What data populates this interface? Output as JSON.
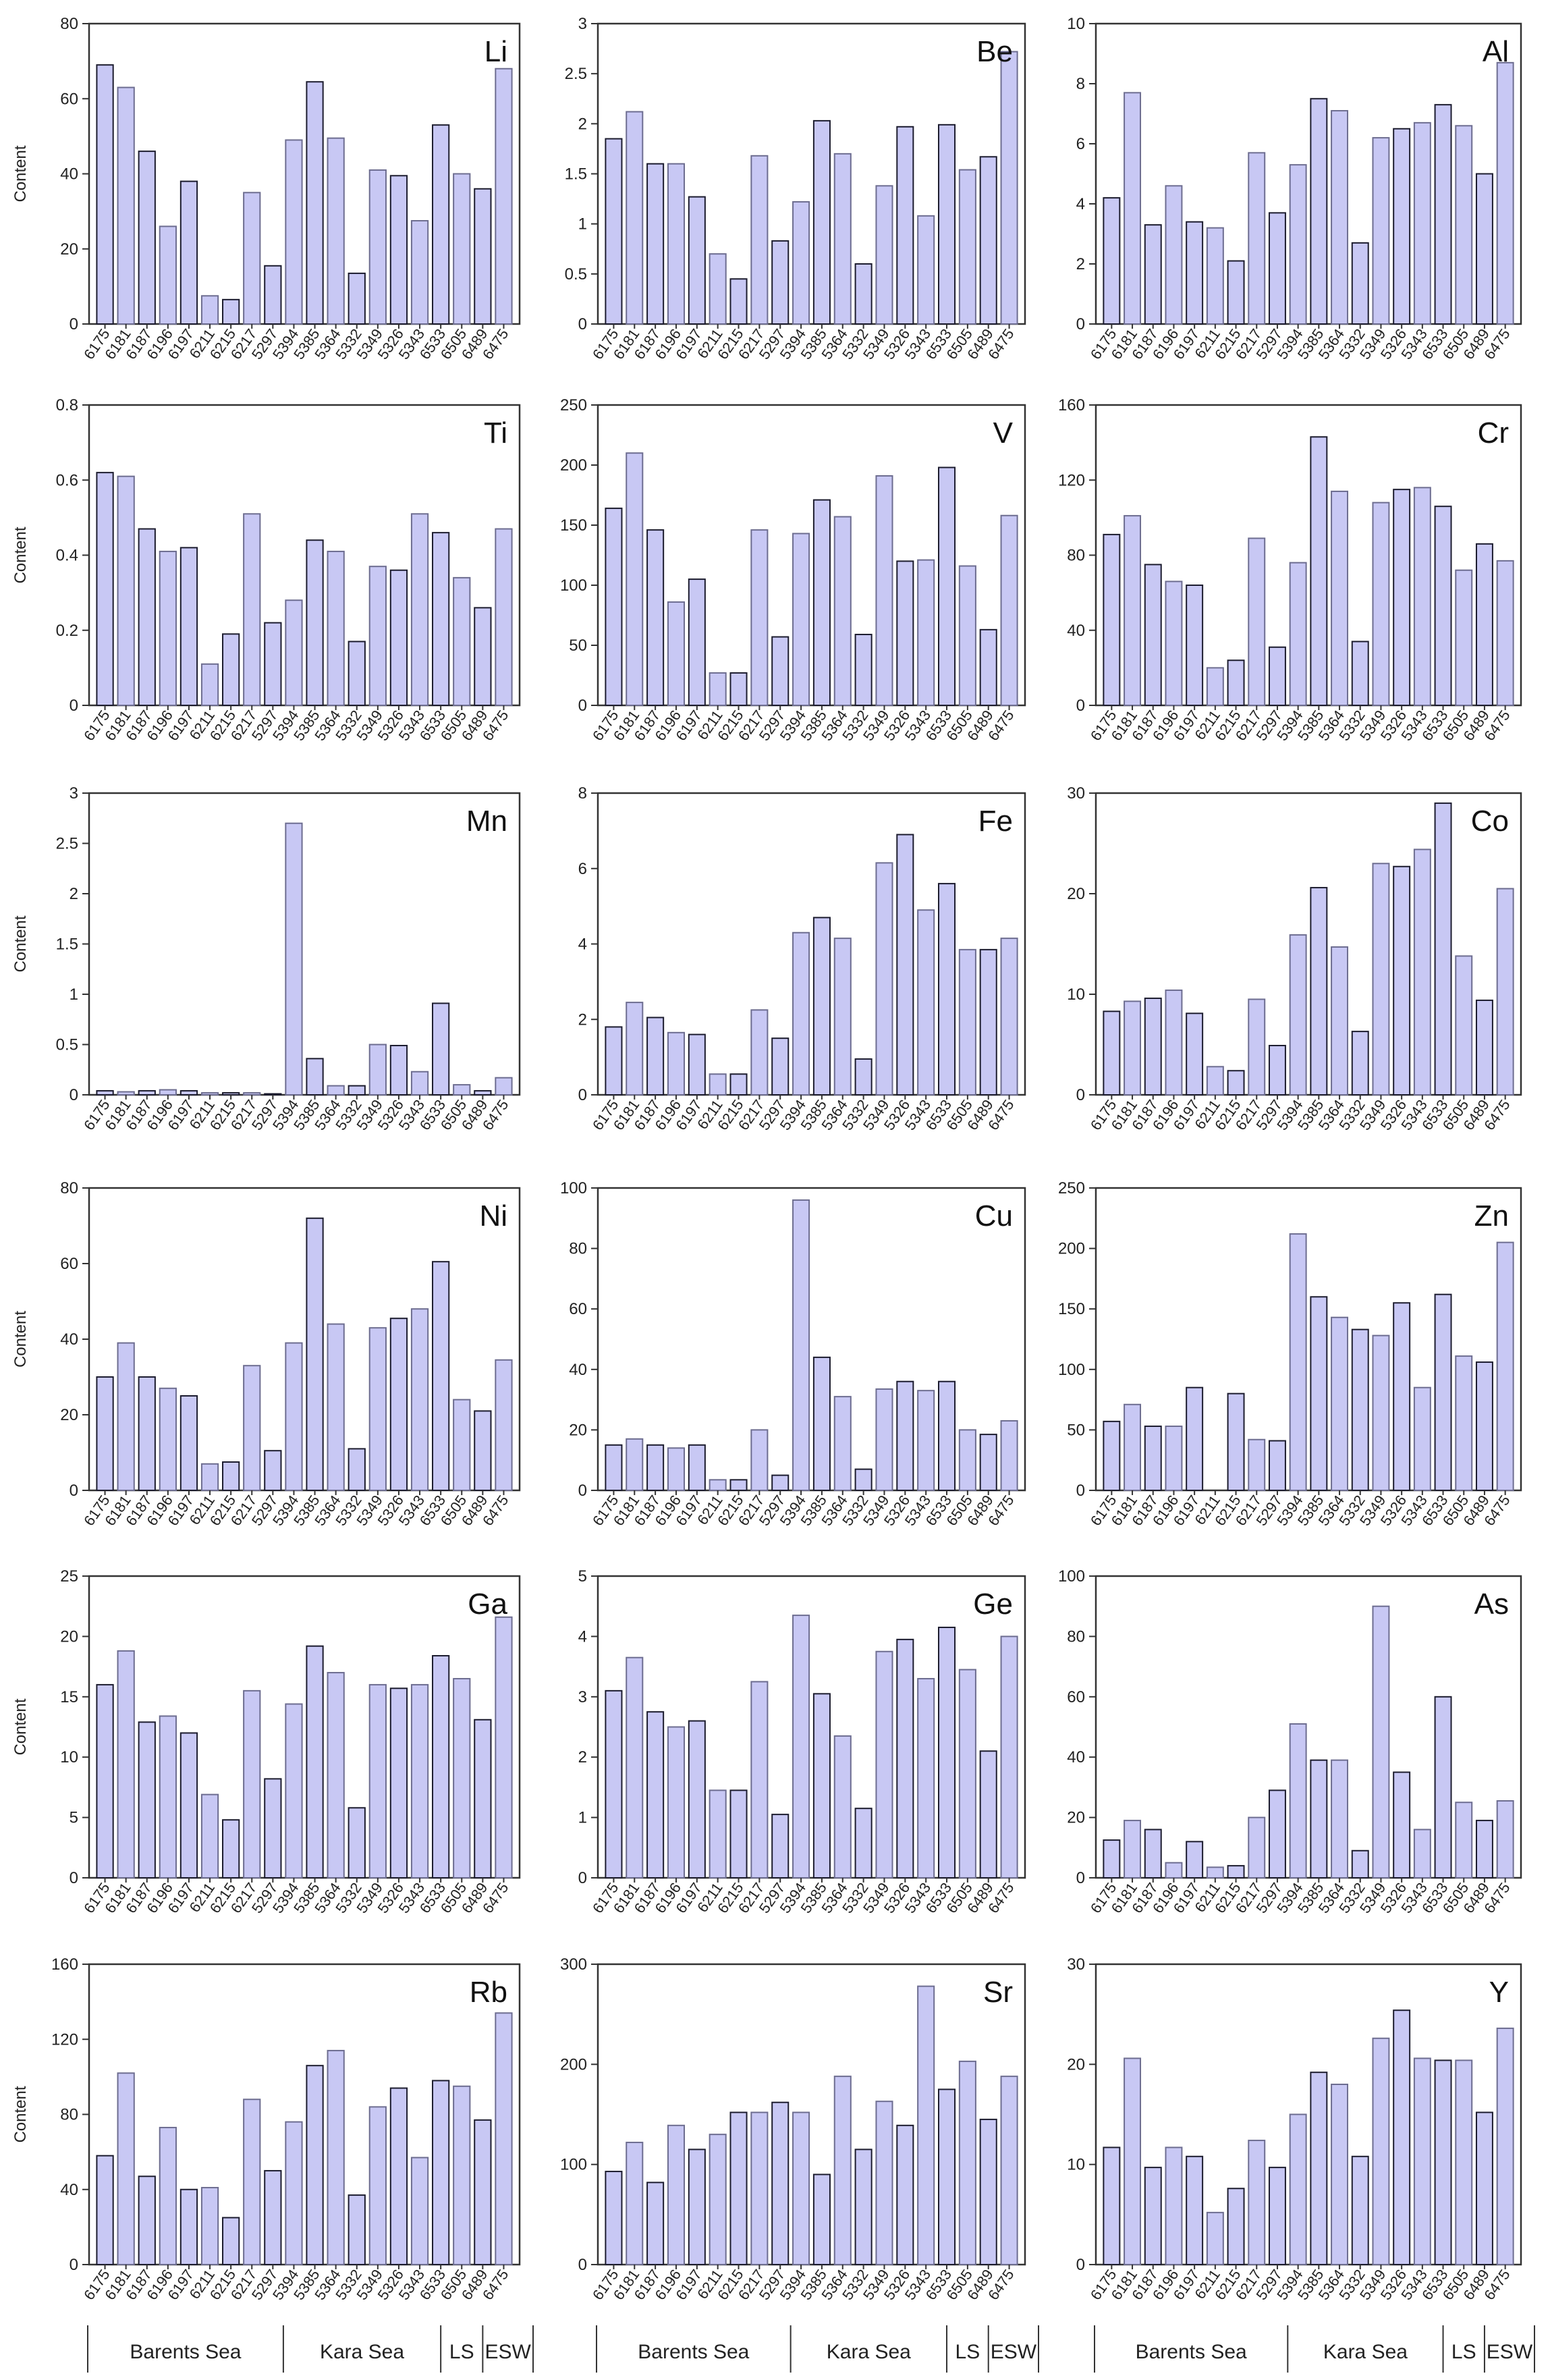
{
  "figure": {
    "y_axis_label": "Content",
    "samples": [
      "6175",
      "6181",
      "6187",
      "6196",
      "6197",
      "6211",
      "6215",
      "6217",
      "5297",
      "5394",
      "5385",
      "5364",
      "5332",
      "5349",
      "5326",
      "5343",
      "6533",
      "6505",
      "6489",
      "6475"
    ],
    "regions": [
      "Barents Sea",
      "Kara Sea",
      "LS",
      "ESW"
    ]
  },
  "chart_data": [
    {
      "type": "bar",
      "title": "Li",
      "ylabel": "Content",
      "ylim": [
        0,
        80
      ],
      "yticks": [
        "0",
        "20",
        "40",
        "60",
        "80"
      ],
      "values": [
        69,
        63,
        46,
        26,
        38,
        7.5,
        6.5,
        35,
        15.5,
        49,
        64.5,
        49.5,
        13.5,
        41,
        39.5,
        27.5,
        53,
        40,
        36,
        68
      ]
    },
    {
      "type": "bar",
      "title": "Be",
      "ylabel": "",
      "ylim": [
        0,
        3
      ],
      "yticks": [
        "0",
        "0.5",
        "1",
        "1.5",
        "2",
        "2.5",
        "3"
      ],
      "values": [
        1.85,
        2.12,
        1.6,
        1.6,
        1.27,
        0.7,
        0.45,
        1.68,
        0.83,
        1.22,
        2.03,
        1.7,
        0.6,
        1.38,
        1.97,
        1.08,
        1.99,
        1.54,
        1.67,
        2.72
      ]
    },
    {
      "type": "bar",
      "title": "Al",
      "ylabel": "",
      "ylim": [
        0,
        10
      ],
      "yticks": [
        "0",
        "2",
        "4",
        "6",
        "8",
        "10"
      ],
      "values": [
        4.2,
        7.7,
        3.3,
        4.6,
        3.4,
        3.2,
        2.1,
        5.7,
        3.7,
        5.3,
        7.5,
        7.1,
        2.7,
        6.2,
        6.5,
        6.7,
        7.3,
        6.6,
        5.0,
        8.7
      ]
    },
    {
      "type": "bar",
      "title": "Ti",
      "ylabel": "Content",
      "ylim": [
        0,
        0.8
      ],
      "yticks": [
        "0",
        "0.2",
        "0.4",
        "0.6",
        "0.8"
      ],
      "values": [
        0.62,
        0.61,
        0.47,
        0.41,
        0.42,
        0.11,
        0.19,
        0.51,
        0.22,
        0.28,
        0.44,
        0.41,
        0.17,
        0.37,
        0.36,
        0.51,
        0.46,
        0.34,
        0.26,
        0.47
      ]
    },
    {
      "type": "bar",
      "title": "V",
      "ylabel": "",
      "ylim": [
        0,
        250
      ],
      "yticks": [
        "0",
        "50",
        "100",
        "150",
        "200",
        "250"
      ],
      "values": [
        164,
        210,
        146,
        86,
        105,
        27,
        27,
        146,
        57,
        143,
        171,
        157,
        59,
        191,
        120,
        121,
        198,
        116,
        63,
        158
      ]
    },
    {
      "type": "bar",
      "title": "Cr",
      "ylabel": "",
      "ylim": [
        0,
        160
      ],
      "yticks": [
        "0",
        "40",
        "80",
        "120",
        "160"
      ],
      "values": [
        91,
        101,
        75,
        66,
        64,
        20,
        24,
        89,
        31,
        76,
        143,
        114,
        34,
        108,
        115,
        116,
        106,
        72,
        86,
        77
      ]
    },
    {
      "type": "bar",
      "title": "Mn",
      "ylabel": "Content",
      "ylim": [
        0,
        3
      ],
      "yticks": [
        "0",
        "0.5",
        "1",
        "1.5",
        "2",
        "2.5",
        "3"
      ],
      "values": [
        0.04,
        0.03,
        0.04,
        0.05,
        0.04,
        0.02,
        0.02,
        0.02,
        0.01,
        2.7,
        0.36,
        0.09,
        0.09,
        0.5,
        0.49,
        0.23,
        0.91,
        0.1,
        0.04,
        0.17
      ]
    },
    {
      "type": "bar",
      "title": "Fe",
      "ylabel": "",
      "ylim": [
        0,
        8
      ],
      "yticks": [
        "0",
        "2",
        "4",
        "6",
        "8"
      ],
      "values": [
        1.8,
        2.45,
        2.05,
        1.65,
        1.6,
        0.55,
        0.55,
        2.25,
        1.5,
        4.3,
        4.7,
        4.15,
        0.95,
        6.15,
        6.9,
        4.9,
        5.6,
        3.85,
        3.85,
        4.15
      ]
    },
    {
      "type": "bar",
      "title": "Co",
      "ylabel": "",
      "ylim": [
        0,
        30
      ],
      "yticks": [
        "0",
        "10",
        "20",
        "30"
      ],
      "values": [
        8.3,
        9.3,
        9.6,
        10.4,
        8.1,
        2.8,
        2.4,
        9.5,
        4.9,
        15.9,
        20.6,
        14.7,
        6.3,
        23,
        22.7,
        24.4,
        29,
        13.8,
        9.4,
        20.5
      ]
    },
    {
      "type": "bar",
      "title": "Ni",
      "ylabel": "Content",
      "ylim": [
        0,
        80
      ],
      "yticks": [
        "0",
        "20",
        "40",
        "60",
        "80"
      ],
      "values": [
        30,
        39,
        30,
        27,
        25,
        7,
        7.5,
        33,
        10.5,
        39,
        72,
        44,
        11,
        43,
        45.5,
        48,
        60.5,
        24,
        21,
        34.5
      ]
    },
    {
      "type": "bar",
      "title": "Cu",
      "ylabel": "",
      "ylim": [
        0,
        100
      ],
      "yticks": [
        "0",
        "20",
        "40",
        "60",
        "80",
        "100"
      ],
      "values": [
        15,
        17,
        15,
        14,
        15,
        3.5,
        3.5,
        20,
        5,
        96,
        44,
        31,
        7,
        33.5,
        36,
        33,
        36,
        20,
        18.5,
        23
      ]
    },
    {
      "type": "bar",
      "title": "Zn",
      "ylabel": "",
      "ylim": [
        0,
        250
      ],
      "yticks": [
        "0",
        "50",
        "100",
        "150",
        "200",
        "250"
      ],
      "values": [
        57,
        71,
        53,
        53,
        85,
        0,
        80,
        42,
        41,
        212,
        160,
        143,
        133,
        128,
        155,
        85,
        162,
        111,
        106,
        205
      ]
    },
    {
      "type": "bar",
      "title": "Ga",
      "ylabel": "Content",
      "ylim": [
        0,
        25
      ],
      "yticks": [
        "0",
        "5",
        "10",
        "15",
        "20",
        "25"
      ],
      "values": [
        16,
        18.8,
        12.9,
        13.4,
        12,
        6.9,
        4.8,
        15.5,
        8.2,
        14.4,
        19.2,
        17,
        5.8,
        16,
        15.7,
        16,
        18.4,
        16.5,
        13.1,
        21.6
      ]
    },
    {
      "type": "bar",
      "title": "Ge",
      "ylabel": "",
      "ylim": [
        0,
        5
      ],
      "yticks": [
        "0",
        "1",
        "2",
        "3",
        "4",
        "5"
      ],
      "values": [
        3.1,
        3.65,
        2.75,
        2.5,
        2.6,
        1.45,
        1.45,
        3.25,
        1.05,
        4.35,
        3.05,
        2.35,
        1.15,
        3.75,
        3.95,
        3.3,
        4.15,
        3.45,
        2.1,
        4.0
      ]
    },
    {
      "type": "bar",
      "title": "As",
      "ylabel": "",
      "ylim": [
        0,
        100
      ],
      "yticks": [
        "0",
        "20",
        "40",
        "60",
        "80",
        "100"
      ],
      "values": [
        12.5,
        19,
        16,
        5,
        12,
        3.5,
        4,
        20,
        29,
        51,
        39,
        39,
        9,
        90,
        35,
        16,
        60,
        25,
        19,
        25.5
      ]
    },
    {
      "type": "bar",
      "title": "Rb",
      "ylabel": "Content",
      "ylim": [
        0,
        160
      ],
      "yticks": [
        "0",
        "40",
        "80",
        "120",
        "160"
      ],
      "values": [
        58,
        102,
        47,
        73,
        40,
        41,
        25,
        88,
        50,
        76,
        106,
        114,
        37,
        84,
        94,
        57,
        98,
        95,
        77,
        134
      ]
    },
    {
      "type": "bar",
      "title": "Sr",
      "ylabel": "",
      "ylim": [
        0,
        300
      ],
      "yticks": [
        "0",
        "100",
        "200",
        "300"
      ],
      "values": [
        93,
        122,
        82,
        139,
        115,
        130,
        152,
        152,
        162,
        152,
        90,
        188,
        115,
        163,
        139,
        278,
        175,
        203,
        145,
        188
      ]
    },
    {
      "type": "bar",
      "title": "Y",
      "ylabel": "",
      "ylim": [
        0,
        30
      ],
      "yticks": [
        "0",
        "10",
        "20",
        "30"
      ],
      "values": [
        11.7,
        20.6,
        9.7,
        11.7,
        10.8,
        5.2,
        7.6,
        12.4,
        9.7,
        15,
        19.2,
        18,
        10.8,
        22.6,
        25.4,
        20.6,
        20.4,
        20.4,
        15.2,
        23.6
      ]
    }
  ]
}
